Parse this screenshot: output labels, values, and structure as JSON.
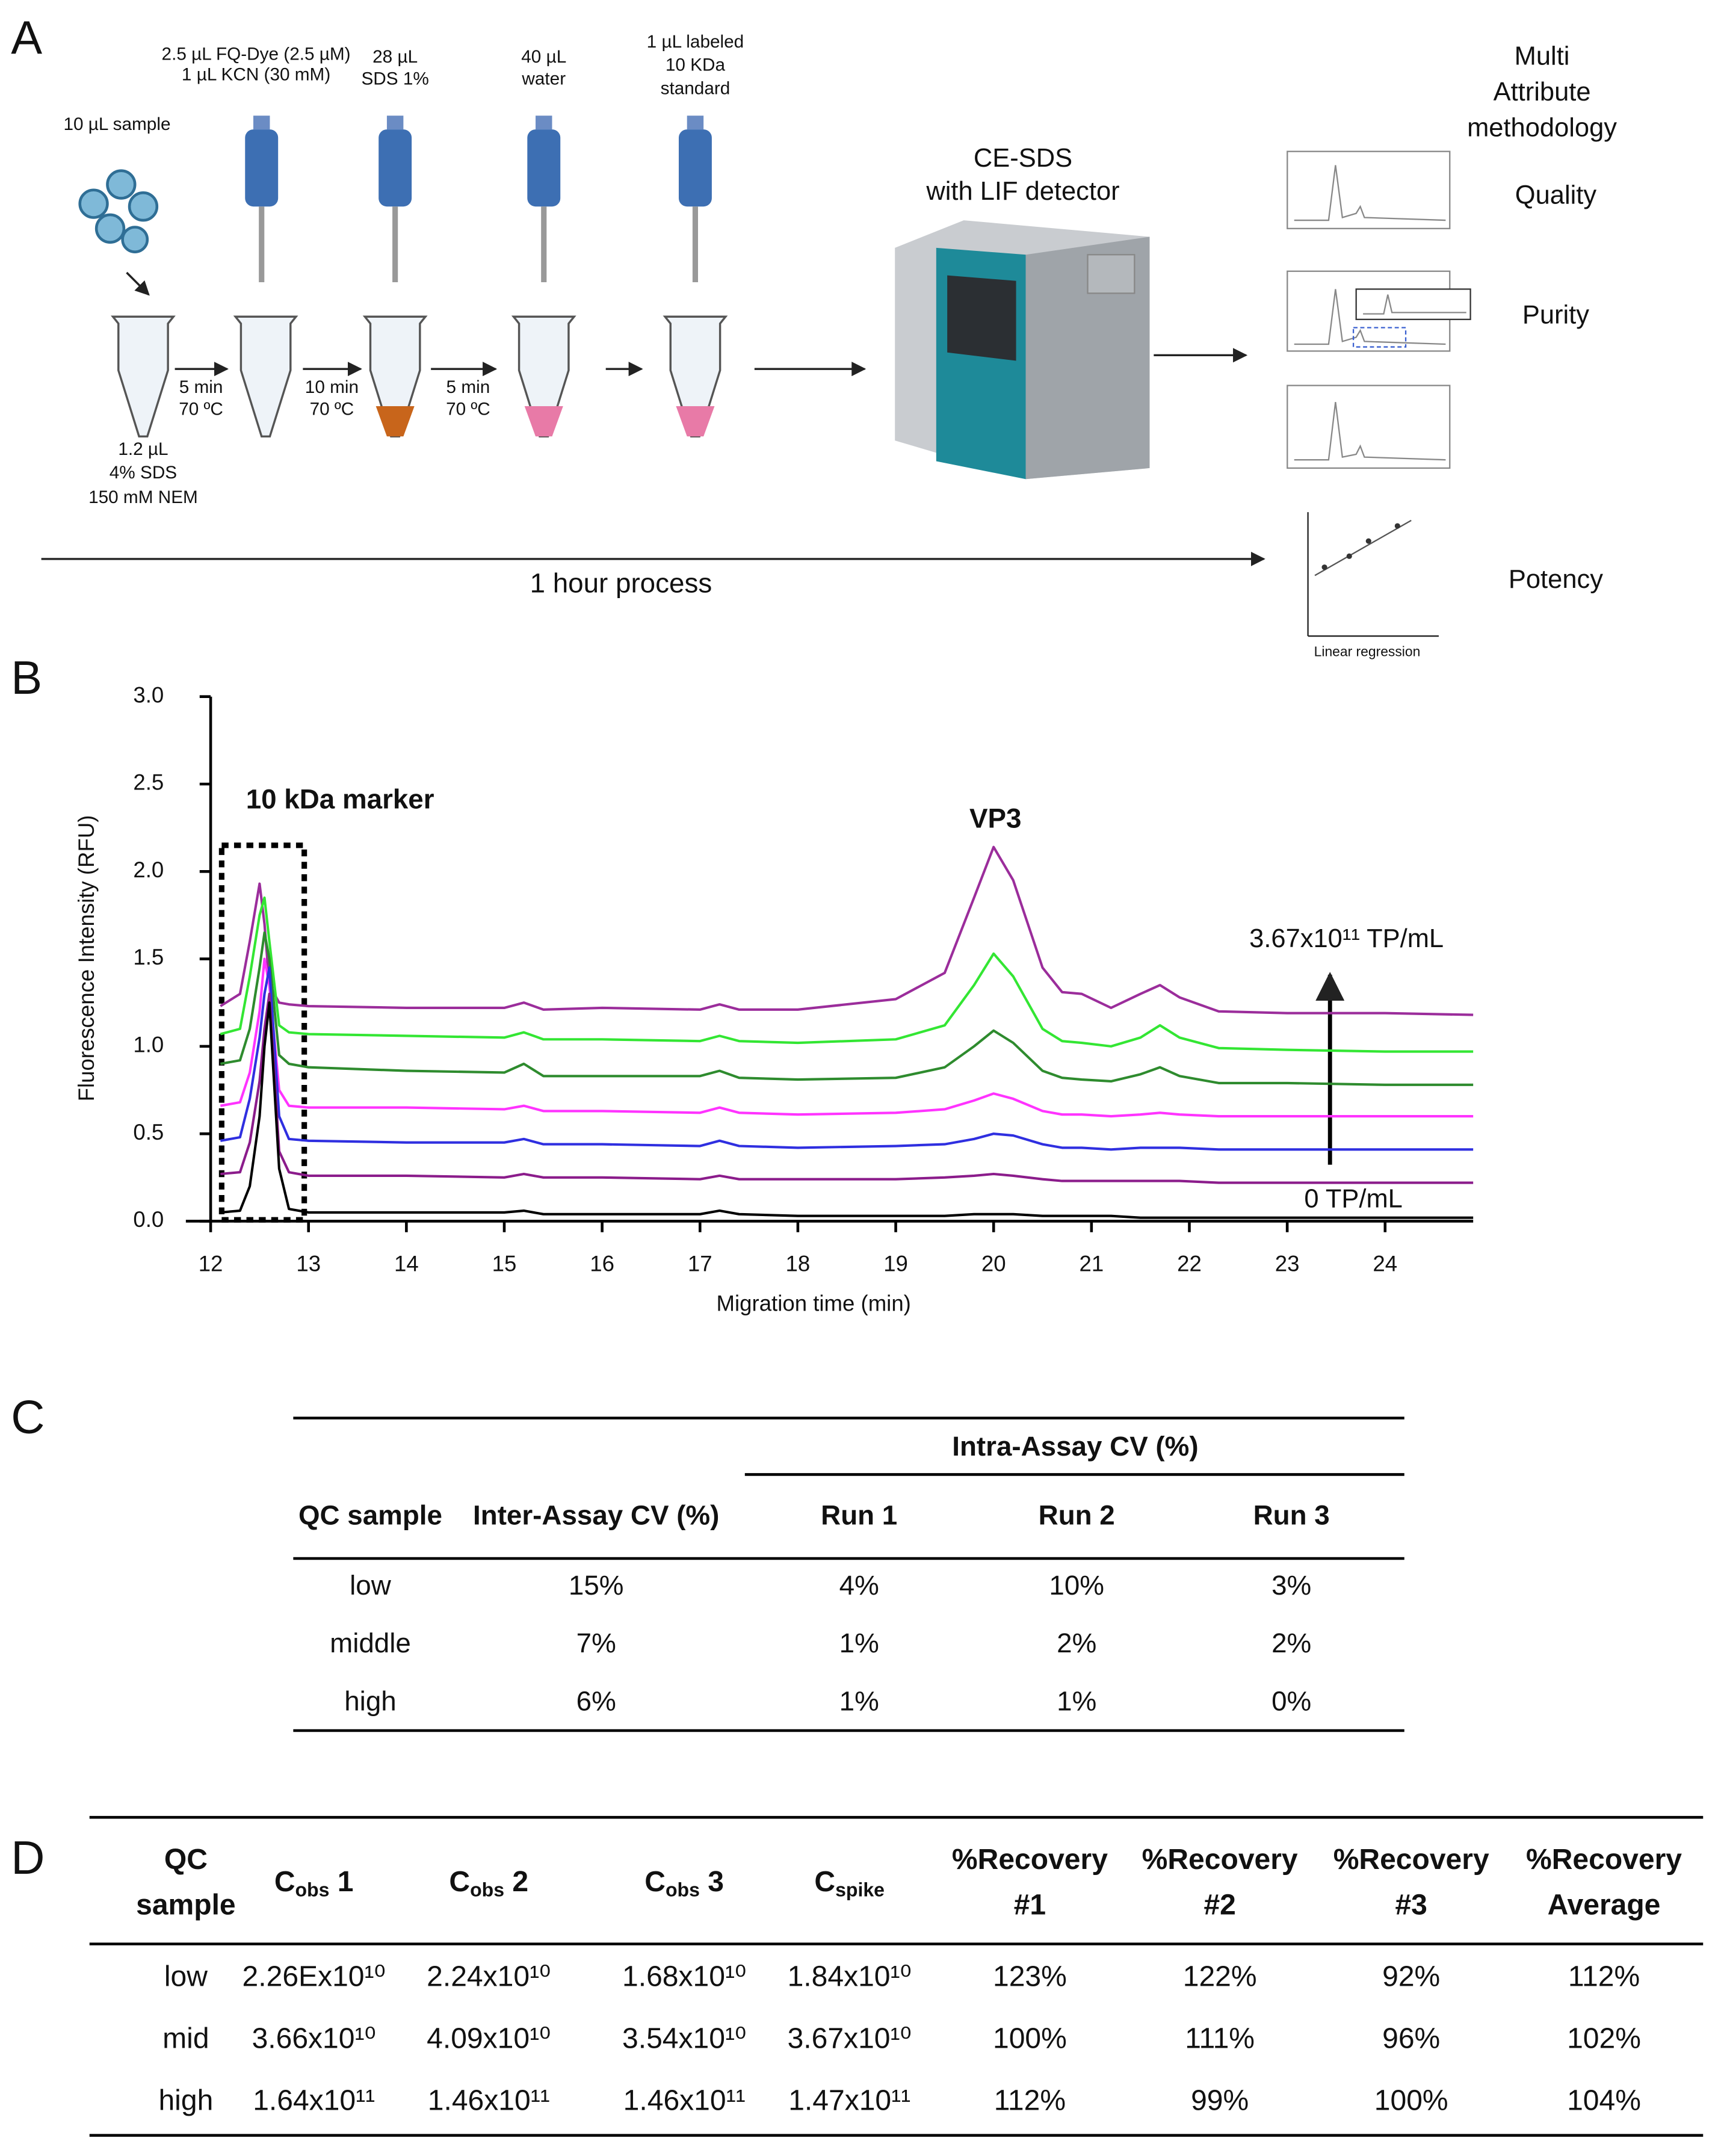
{
  "panel_labels": [
    "A",
    "B",
    "C",
    "D"
  ],
  "panel_a": {
    "sample_label": "10 µL sample",
    "dye_label": [
      "2.5 µL FQ-Dye  (2.5  µM)",
      "1 µL KCN (30 mM)"
    ],
    "sds_label": [
      "28 µL",
      "SDS 1%"
    ],
    "water_label": [
      "40 µL",
      "water"
    ],
    "standard_label": [
      "1 µL labeled",
      "10 KDa",
      "standard"
    ],
    "tube_label": [
      "1.2 µL",
      "4% SDS",
      "150 mM NEM"
    ],
    "steps": [
      [
        "5 min",
        "70 ºC"
      ],
      [
        "10 min",
        "70 ºC"
      ],
      [
        "5 min",
        "70 ºC"
      ]
    ],
    "instrument": [
      "CE-SDS",
      "with LIF detector"
    ],
    "method": [
      "Multi",
      "Attribute",
      "methodology"
    ],
    "attributes": [
      "Quality",
      "Purity",
      "Potency"
    ],
    "process": "1 hour process",
    "regression": "Linear regression"
  },
  "chart_data": {
    "type": "line",
    "xlabel": "Migration time (min)",
    "ylabel": "Fluorescence Intensity (RFU)",
    "annotations": [
      "10 kDa marker",
      "VP3",
      "3.67x10¹¹ TP/mL",
      "0 TP/mL"
    ],
    "xlim": [
      12,
      24.9
    ],
    "ylim": [
      0,
      3.0
    ],
    "xticks": [
      12,
      13,
      14,
      15,
      16,
      17,
      18,
      19,
      20,
      21,
      22,
      23,
      24
    ],
    "yticks": [
      {
        "value": 0,
        "label": "0.0"
      },
      {
        "value": 0.5,
        "label": "0.5"
      },
      {
        "value": 1,
        "label": "1.0"
      },
      {
        "value": 1.5,
        "label": "1.5"
      },
      {
        "value": 2,
        "label": "2.0"
      },
      {
        "value": 2.5,
        "label": "2.5"
      },
      {
        "value": 3,
        "label": "3.0"
      }
    ],
    "x": [
      12.1,
      12.3,
      12.4,
      12.5,
      12.55,
      12.6,
      12.7,
      12.8,
      13.0,
      14,
      15.0,
      15.2,
      15.4,
      16,
      17.0,
      17.2,
      17.4,
      18,
      19,
      19.5,
      19.8,
      20.0,
      20.2,
      20.5,
      20.7,
      20.9,
      21.2,
      21.5,
      21.7,
      21.9,
      22.3,
      23,
      24,
      24.9
    ],
    "series": [
      {
        "color": "#9b2d9b",
        "values": [
          1.23,
          1.3,
          1.6,
          1.93,
          1.7,
          1.35,
          1.25,
          1.24,
          1.23,
          1.22,
          1.22,
          1.25,
          1.21,
          1.22,
          1.21,
          1.24,
          1.21,
          1.21,
          1.27,
          1.42,
          1.85,
          2.14,
          1.95,
          1.45,
          1.31,
          1.3,
          1.22,
          1.3,
          1.35,
          1.28,
          1.2,
          1.19,
          1.19,
          1.18
        ]
      },
      {
        "color": "#33e633",
        "values": [
          1.07,
          1.1,
          1.4,
          1.75,
          1.85,
          1.6,
          1.12,
          1.08,
          1.07,
          1.06,
          1.05,
          1.08,
          1.04,
          1.04,
          1.03,
          1.06,
          1.03,
          1.02,
          1.04,
          1.12,
          1.35,
          1.53,
          1.4,
          1.1,
          1.03,
          1.02,
          1.0,
          1.05,
          1.12,
          1.05,
          0.99,
          0.98,
          0.97,
          0.97
        ]
      },
      {
        "color": "#2e8b2e",
        "values": [
          0.9,
          0.92,
          1.1,
          1.45,
          1.65,
          1.5,
          0.95,
          0.9,
          0.88,
          0.86,
          0.85,
          0.9,
          0.83,
          0.83,
          0.83,
          0.86,
          0.82,
          0.81,
          0.82,
          0.88,
          1.0,
          1.09,
          1.02,
          0.86,
          0.82,
          0.81,
          0.8,
          0.84,
          0.88,
          0.83,
          0.79,
          0.79,
          0.78,
          0.78
        ]
      },
      {
        "color": "#ff33ff",
        "values": [
          0.66,
          0.68,
          0.85,
          1.2,
          1.5,
          1.35,
          0.75,
          0.66,
          0.65,
          0.65,
          0.64,
          0.66,
          0.63,
          0.63,
          0.62,
          0.65,
          0.62,
          0.61,
          0.62,
          0.64,
          0.69,
          0.73,
          0.7,
          0.63,
          0.61,
          0.61,
          0.6,
          0.61,
          0.62,
          0.61,
          0.6,
          0.6,
          0.6,
          0.6
        ]
      },
      {
        "color": "#2f2fe0",
        "values": [
          0.46,
          0.48,
          0.7,
          1.05,
          1.3,
          1.45,
          0.6,
          0.47,
          0.46,
          0.45,
          0.45,
          0.47,
          0.44,
          0.44,
          0.43,
          0.46,
          0.43,
          0.42,
          0.43,
          0.44,
          0.47,
          0.5,
          0.49,
          0.44,
          0.42,
          0.42,
          0.41,
          0.42,
          0.42,
          0.42,
          0.41,
          0.41,
          0.41,
          0.41
        ]
      },
      {
        "color": "#8b1c8b",
        "values": [
          0.27,
          0.28,
          0.45,
          0.8,
          1.1,
          1.3,
          0.4,
          0.28,
          0.26,
          0.26,
          0.25,
          0.27,
          0.25,
          0.25,
          0.24,
          0.26,
          0.24,
          0.24,
          0.24,
          0.25,
          0.26,
          0.27,
          0.26,
          0.24,
          0.23,
          0.23,
          0.23,
          0.23,
          0.23,
          0.23,
          0.22,
          0.22,
          0.22,
          0.22
        ]
      },
      {
        "color": "#000000",
        "values": [
          0.05,
          0.06,
          0.2,
          0.6,
          1.0,
          1.25,
          0.3,
          0.07,
          0.05,
          0.05,
          0.05,
          0.06,
          0.04,
          0.04,
          0.04,
          0.06,
          0.04,
          0.03,
          0.03,
          0.03,
          0.04,
          0.04,
          0.04,
          0.03,
          0.03,
          0.03,
          0.03,
          0.02,
          0.02,
          0.02,
          0.02,
          0.02,
          0.02,
          0.02
        ]
      }
    ]
  },
  "table_c": {
    "group_header": "Intra-Assay CV (%)",
    "header": [
      "QC sample",
      "Inter-Assay CV (%)",
      "Run 1",
      "Run 2",
      "Run 3"
    ],
    "rows": [
      [
        "low",
        "15%",
        "4%",
        "10%",
        "3%"
      ],
      [
        "middle",
        "7%",
        "1%",
        "2%",
        "2%"
      ],
      [
        "high",
        "6%",
        "1%",
        "1%",
        "0%"
      ]
    ]
  },
  "table_d": {
    "header": [
      [
        "QC",
        "sample"
      ],
      {
        "base": "C",
        "sub": "obs",
        "suffix": " 1"
      },
      {
        "base": "C",
        "sub": "obs",
        "suffix": " 2"
      },
      {
        "base": "C",
        "sub": "obs",
        "suffix": " 3"
      },
      {
        "base": "C",
        "sub": "spike"
      },
      [
        "%Recovery",
        "#1"
      ],
      [
        "%Recovery",
        "#2"
      ],
      [
        "%Recovery",
        "#3"
      ],
      [
        "%Recovery",
        "Average"
      ]
    ],
    "rows": [
      [
        "low",
        "2.26Ex10¹⁰",
        "2.24x10¹⁰",
        "1.68x10¹⁰",
        "1.84x10¹⁰",
        "123%",
        "122%",
        "92%",
        "112%"
      ],
      [
        "mid",
        "3.66x10¹⁰",
        "4.09x10¹⁰",
        "3.54x10¹⁰",
        "3.67x10¹⁰",
        "100%",
        "111%",
        "96%",
        "102%"
      ],
      [
        "high",
        "1.64x10¹¹",
        "1.46x10¹¹",
        "1.46x10¹¹",
        "1.47x10¹¹",
        "112%",
        "99%",
        "100%",
        "104%"
      ]
    ]
  }
}
